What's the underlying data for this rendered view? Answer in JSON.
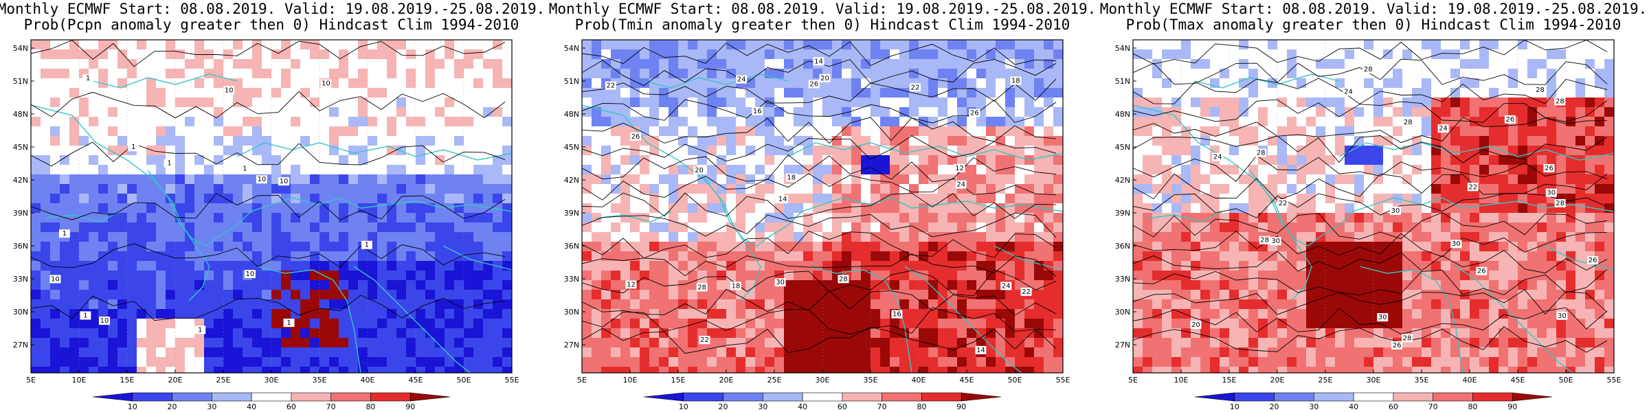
{
  "palette": {
    "bin_colors": [
      "#1a14d6",
      "#3a46ea",
      "#6e82f2",
      "#a9b8f6",
      "#ffffff",
      "#f6b4b4",
      "#f07272",
      "#e52d2d",
      "#9b0808"
    ],
    "coast": "#34c6c6",
    "contour": "#000000"
  },
  "colorbar_ticks": [
    "10",
    "20",
    "30",
    "40",
    "60",
    "70",
    "80",
    "90"
  ],
  "panels": [
    {
      "id": "pcpn",
      "title_line1": "Monthly ECMWF Start: 08.08.2019. Valid: 19.08.2019.-25.08.2019.",
      "title_line2": "Prob(Pcpn anomaly greater then 0) Hindcast Clim 1994-2010",
      "lat_labels": [
        "54N",
        "51N",
        "48N",
        "45N",
        "42N",
        "39N",
        "36N",
        "33N",
        "30N",
        "27N"
      ],
      "lon_labels": [
        "5E",
        "10E",
        "15E",
        "20E",
        "25E",
        "30E",
        "35E",
        "40E",
        "45E",
        "50E",
        "55E"
      ],
      "contour_labels": [
        "10",
        "10",
        "10",
        "10",
        "10",
        "1",
        "1",
        "1",
        "1",
        "1",
        "1",
        "1",
        "1",
        "1",
        "10",
        "10"
      ]
    },
    {
      "id": "tmin",
      "title_line1": "Monthly ECMWF Start: 08.08.2019. Valid: 19.08.2019.-25.08.2019.",
      "title_line2": "Prob(Tmin anomaly greater then 0) Hindcast Clim 1994-2010",
      "lat_labels": [
        "54N",
        "51N",
        "48N",
        "45N",
        "42N",
        "39N",
        "36N",
        "33N",
        "30N",
        "27N"
      ],
      "lon_labels": [
        "5E",
        "10E",
        "15E",
        "20E",
        "25E",
        "30E",
        "35E",
        "40E",
        "45E",
        "50E",
        "55E"
      ],
      "contour_labels": [
        "14",
        "12",
        "12",
        "14",
        "16",
        "18",
        "20",
        "22",
        "24",
        "26",
        "22",
        "18",
        "16",
        "14",
        "28",
        "30",
        "26",
        "24",
        "22",
        "24",
        "22",
        "26",
        "28",
        "18",
        "20"
      ]
    },
    {
      "id": "tmax",
      "title_line1": "Monthly ECMWF Start: 08.08.2019. Valid: 19.08.2019.-25.08.2019.",
      "title_line2": "Prob(Tmax anomaly greater then 0) Hindcast Clim 1994-2010",
      "lat_labels": [
        "54N",
        "51N",
        "48N",
        "45N",
        "42N",
        "39N",
        "36N",
        "33N",
        "30N",
        "27N"
      ],
      "lon_labels": [
        "5E",
        "10E",
        "15E",
        "20E",
        "25E",
        "30E",
        "35E",
        "40E",
        "45E",
        "50E",
        "55E"
      ],
      "contour_labels": [
        "20",
        "22",
        "24",
        "26",
        "28",
        "30",
        "22",
        "24",
        "26",
        "28",
        "30",
        "28",
        "26",
        "24",
        "28",
        "30",
        "28",
        "30",
        "28",
        "26",
        "28",
        "30",
        "30",
        "28",
        "26"
      ]
    }
  ]
}
